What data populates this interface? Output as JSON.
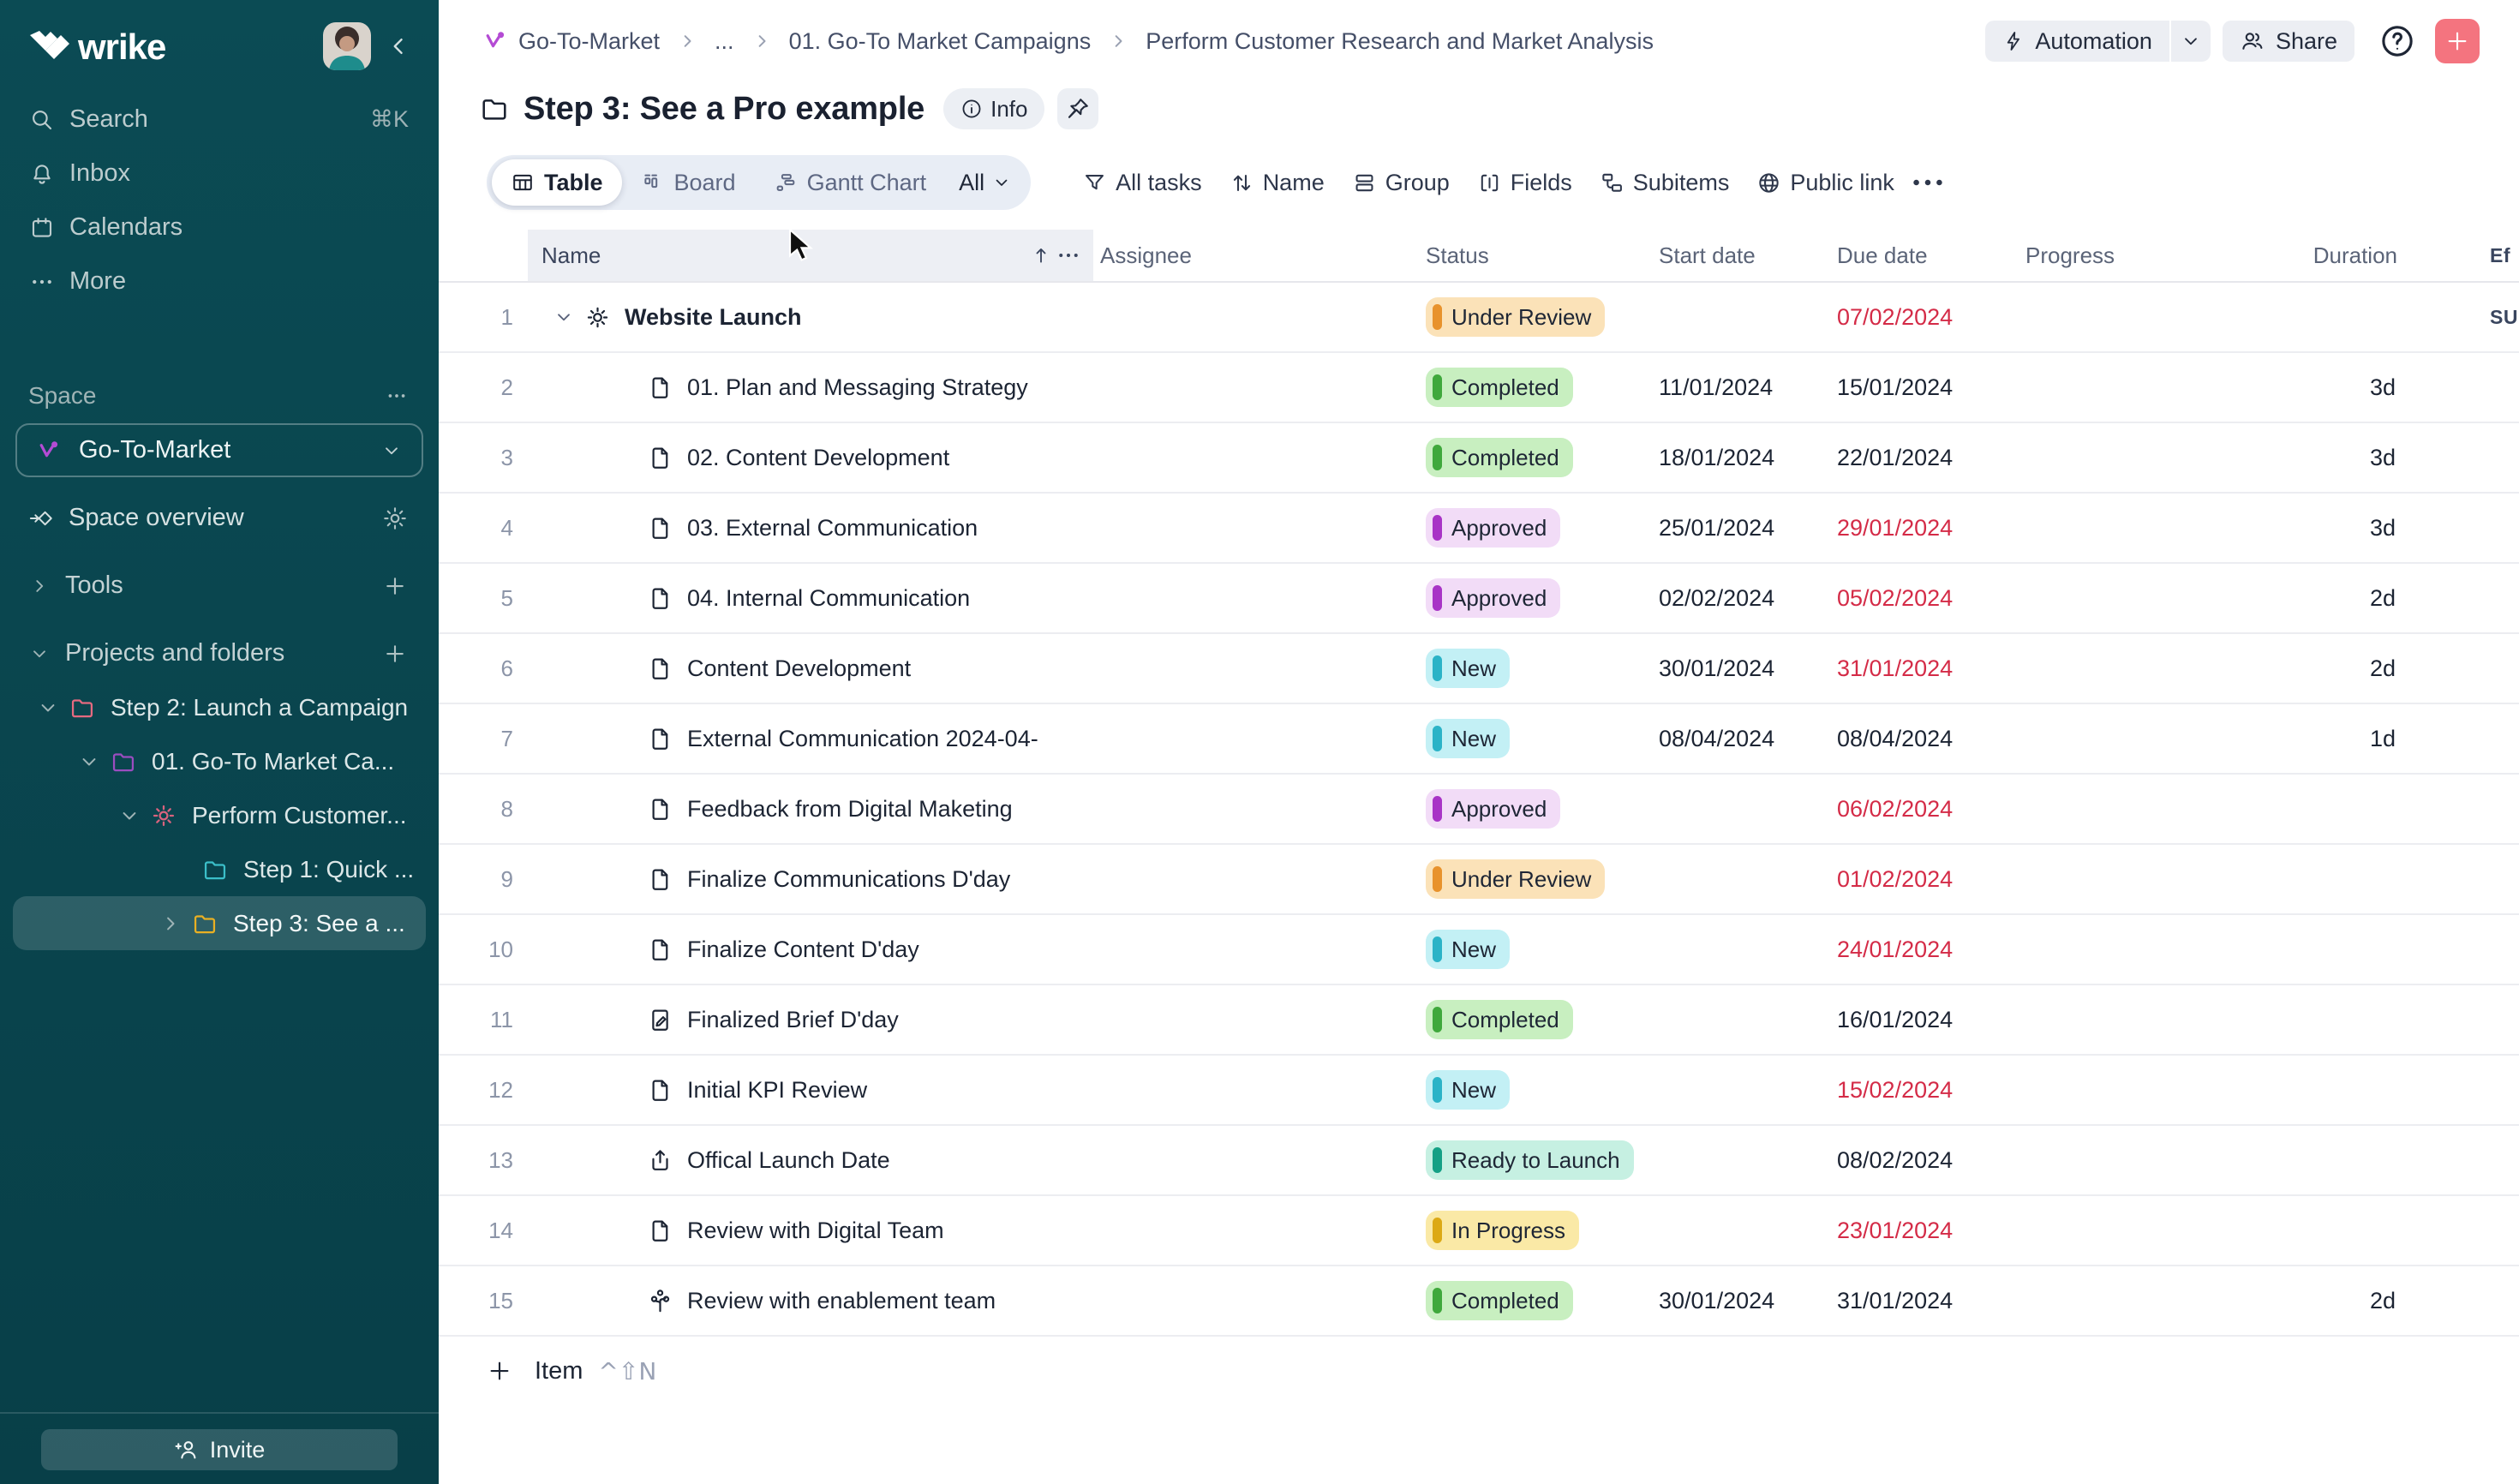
{
  "colors": {
    "sidebar_bg": "#083F48",
    "sidebar_bg_top": "#0B4B54",
    "sidebar_selected": "rgba(255,255,255,0.15)",
    "overdue_red": "#D42B47",
    "add_button": "#F4747F",
    "chip_bg": "#ECEFF4",
    "table_header_highlight": "#EDEFF4"
  },
  "sidebar": {
    "logo": "wrike",
    "nav": [
      {
        "label": "Search",
        "icon": "search",
        "shortcut": "⌘K"
      },
      {
        "label": "Inbox",
        "icon": "bell"
      },
      {
        "label": "Calendars",
        "icon": "calendar"
      },
      {
        "label": "More",
        "icon": "ellipsis"
      }
    ],
    "space": {
      "section_label": "Space",
      "selector_label": "Go-To-Market",
      "overview_label": "Space overview",
      "tools_label": "Tools",
      "projects_label": "Projects and folders"
    },
    "tree": [
      {
        "label": "Step 2: Launch a Campaign",
        "icon": "folder",
        "color": "#E56A80",
        "chevron": "down",
        "level": 0
      },
      {
        "label": "01. Go-To Market Ca...",
        "icon": "folder",
        "color": "#9B4DC0",
        "chevron": "down",
        "level": 1
      },
      {
        "label": "Perform Customer...",
        "icon": "sun",
        "color": "#D9637E",
        "chevron": "down",
        "level": 2
      },
      {
        "label": "Step 1: Quick ...",
        "icon": "folder",
        "color": "#3BBFC9",
        "chevron": "none",
        "level": 3
      },
      {
        "label": "Step 3: See a ...",
        "icon": "folder",
        "color": "#E9B023",
        "chevron": "right",
        "level": 3,
        "selected": true
      }
    ],
    "invite_label": "Invite"
  },
  "header": {
    "breadcrumb": [
      {
        "label": "Go-To-Market",
        "icon": "space"
      },
      {
        "label": "..."
      },
      {
        "label": "01. Go-To Market Campaigns"
      },
      {
        "label": "Perform Customer Research and Market Analysis"
      }
    ],
    "automation_label": "Automation",
    "share_label": "Share",
    "title": "Step 3: See a Pro example",
    "info_label": "Info"
  },
  "toolbar": {
    "views": [
      {
        "label": "Table",
        "icon": "table",
        "selected": true
      },
      {
        "label": "Board",
        "icon": "board",
        "selected": false
      },
      {
        "label": "Gantt Chart",
        "icon": "gantt",
        "selected": false
      }
    ],
    "view_scope": "All",
    "actions": [
      {
        "label": "All tasks",
        "icon": "filter"
      },
      {
        "label": "Name",
        "icon": "sort"
      },
      {
        "label": "Group",
        "icon": "group"
      },
      {
        "label": "Fields",
        "icon": "fields"
      },
      {
        "label": "Subitems",
        "icon": "subitems"
      },
      {
        "label": "Public link",
        "icon": "globe"
      }
    ]
  },
  "table": {
    "columns": {
      "name": "Name",
      "assignee": "Assignee",
      "status": "Status",
      "start": "Start date",
      "due": "Due date",
      "progress": "Progress",
      "duration": "Duration",
      "effort": "Ef"
    },
    "sum_label": "SUM",
    "statuses": {
      "under_review": {
        "label": "Under Review",
        "bg": "#FBE2B8",
        "bar": "#E8922C"
      },
      "completed": {
        "label": "Completed",
        "bg": "#C8EFC0",
        "bar": "#3FA83C"
      },
      "approved": {
        "label": "Approved",
        "bg": "#F2DCF7",
        "bar": "#A834C6"
      },
      "new": {
        "label": "New",
        "bg": "#C3F0F5",
        "bar": "#2BB3C7"
      },
      "ready": {
        "label": "Ready to Launch",
        "bg": "#C6F0E2",
        "bar": "#15A085"
      },
      "in_progress": {
        "label": "In Progress",
        "bg": "#FAE9A6",
        "bar": "#DCA915"
      }
    },
    "rows": [
      {
        "n": "1",
        "name": "Website Launch",
        "icon": "sun",
        "level": 0,
        "bold": true,
        "chevron": true,
        "status": "under_review",
        "start": "",
        "due": "07/02/2024",
        "overdue": true,
        "duration": "",
        "effort": "SUM"
      },
      {
        "n": "2",
        "name": "01. Plan and Messaging Strategy",
        "icon": "task",
        "level": 1,
        "status": "completed",
        "start": "11/01/2024",
        "due": "15/01/2024",
        "overdue": false,
        "duration": "3d",
        "effort": ""
      },
      {
        "n": "3",
        "name": "02. Content Development",
        "icon": "task",
        "level": 1,
        "status": "completed",
        "start": "18/01/2024",
        "due": "22/01/2024",
        "overdue": false,
        "duration": "3d",
        "effort": ""
      },
      {
        "n": "4",
        "name": "03. External Communication",
        "icon": "task",
        "level": 1,
        "status": "approved",
        "start": "25/01/2024",
        "due": "29/01/2024",
        "overdue": true,
        "duration": "3d",
        "effort": ""
      },
      {
        "n": "5",
        "name": "04. Internal Communication",
        "icon": "task",
        "level": 1,
        "status": "approved",
        "start": "02/02/2024",
        "due": "05/02/2024",
        "overdue": true,
        "duration": "2d",
        "effort": ""
      },
      {
        "n": "6",
        "name": "Content Development",
        "icon": "task",
        "level": 1,
        "status": "new",
        "start": "30/01/2024",
        "due": "31/01/2024",
        "overdue": true,
        "duration": "2d",
        "effort": ""
      },
      {
        "n": "7",
        "name": "External Communication 2024-04-",
        "icon": "task",
        "level": 1,
        "status": "new",
        "start": "08/04/2024",
        "due": "08/04/2024",
        "overdue": false,
        "duration": "1d",
        "effort": ""
      },
      {
        "n": "8",
        "name": "Feedback from Digital Maketing",
        "icon": "task",
        "level": 1,
        "status": "approved",
        "start": "",
        "due": "06/02/2024",
        "overdue": true,
        "duration": "",
        "effort": ""
      },
      {
        "n": "9",
        "name": "Finalize Communications D'day",
        "icon": "task",
        "level": 1,
        "status": "under_review",
        "start": "",
        "due": "01/02/2024",
        "overdue": true,
        "duration": "",
        "effort": ""
      },
      {
        "n": "10",
        "name": "Finalize Content D'day",
        "icon": "task",
        "level": 1,
        "status": "new",
        "start": "",
        "due": "24/01/2024",
        "overdue": true,
        "duration": "",
        "effort": ""
      },
      {
        "n": "11",
        "name": "Finalized Brief D'day",
        "icon": "edit",
        "level": 1,
        "status": "completed",
        "start": "",
        "due": "16/01/2024",
        "overdue": false,
        "duration": "",
        "effort": ""
      },
      {
        "n": "12",
        "name": "Initial KPI Review",
        "icon": "task",
        "level": 1,
        "status": "new",
        "start": "",
        "due": "15/02/2024",
        "overdue": true,
        "duration": "",
        "effort": ""
      },
      {
        "n": "13",
        "name": "Offical Launch Date",
        "icon": "launch",
        "level": 1,
        "status": "ready",
        "start": "",
        "due": "08/02/2024",
        "overdue": false,
        "duration": "",
        "effort": ""
      },
      {
        "n": "14",
        "name": "Review with Digital Team",
        "icon": "task",
        "level": 1,
        "status": "in_progress",
        "start": "",
        "due": "23/01/2024",
        "overdue": true,
        "duration": "",
        "effort": ""
      },
      {
        "n": "15",
        "name": "Review with enablement team",
        "icon": "workflow",
        "level": 1,
        "status": "completed",
        "start": "30/01/2024",
        "due": "31/01/2024",
        "overdue": false,
        "duration": "2d",
        "effort": ""
      }
    ]
  },
  "footer": {
    "add_label": "Item",
    "shortcut": "^⇧N"
  }
}
